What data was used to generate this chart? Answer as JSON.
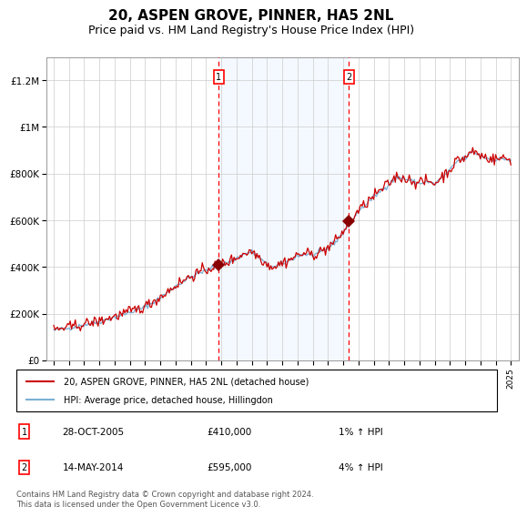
{
  "title": "20, ASPEN GROVE, PINNER, HA5 2NL",
  "subtitle": "Price paid vs. HM Land Registry's House Price Index (HPI)",
  "title_fontsize": 11,
  "subtitle_fontsize": 9,
  "ylim": [
    0,
    1300000
  ],
  "ytick_labels": [
    "£0",
    "£200K",
    "£400K",
    "£600K",
    "£800K",
    "£1M",
    "£1.2M"
  ],
  "ytick_values": [
    0,
    200000,
    400000,
    600000,
    800000,
    1000000,
    1200000
  ],
  "sale1_date_num": 2005.83,
  "sale1_price": 410000,
  "sale1_date_str": "28-OCT-2005",
  "sale1_pct": "1%",
  "sale2_date_num": 2014.37,
  "sale2_price": 595000,
  "sale2_date_str": "14-MAY-2014",
  "sale2_pct": "4%",
  "hpi_color": "#7ab0d4",
  "price_color": "#cc0000",
  "sale_marker_color": "#880000",
  "background_color": "#ffffff",
  "shaded_region_color": "#ddeeff",
  "grid_color": "#cccccc",
  "legend_entry1": "20, ASPEN GROVE, PINNER, HA5 2NL (detached house)",
  "legend_entry2": "HPI: Average price, detached house, Hillingdon",
  "footer": "Contains HM Land Registry data © Crown copyright and database right 2024.\nThis data is licensed under the Open Government Licence v3.0.",
  "xmin": 1994.5,
  "xmax": 2025.5
}
